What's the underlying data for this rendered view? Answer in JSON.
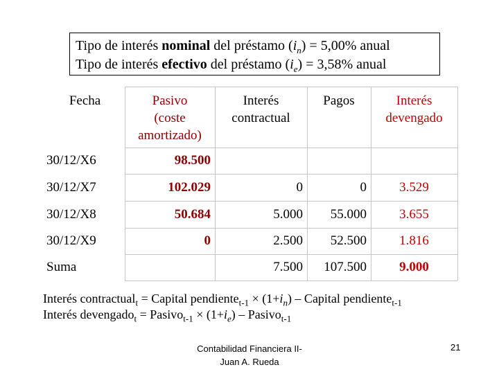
{
  "rate_box": {
    "lines": [
      [
        "Tipo de interés ",
        "nominal",
        " del préstamo (",
        "i",
        "n",
        ") = 5,00% anual"
      ],
      [
        "Tipo de interés ",
        "efectivo",
        " del préstamo (",
        "i",
        "e",
        ") = 3,58% anual"
      ]
    ]
  },
  "table": {
    "headers": [
      [
        "Fecha"
      ],
      [
        "Pasivo",
        "(coste",
        "amortizado)"
      ],
      [
        "Interés",
        "contractual"
      ],
      [
        "Pagos"
      ],
      [
        "Interés",
        "devengado"
      ]
    ],
    "rows": [
      [
        "30/12/X6",
        "98.500",
        null,
        null,
        null
      ],
      [
        "30/12/X7",
        "102.029",
        "0",
        "0",
        "3.529"
      ],
      [
        "30/12/X8",
        "50.684",
        "5.000",
        "55.000",
        "3.655"
      ],
      [
        "30/12/X9",
        "0",
        "2.500",
        "52.500",
        "1.816"
      ],
      [
        "Suma",
        null,
        "7.500",
        "107.500",
        "9.000"
      ]
    ]
  },
  "formulas": [
    [
      "Interés contractual",
      "t",
      " = Capital pendiente",
      "t-1",
      " × (1+",
      "i",
      "n",
      ") – Capital pendiente",
      "t-1"
    ],
    [
      "Interés devengado",
      "t",
      " = Pasivo",
      "t-1",
      " × (1+",
      "i",
      "e",
      ") – Pasivo",
      "t-1"
    ]
  ],
  "footer": {
    "lines": [
      "Contabilidad Financiera II-",
      "Juan A. Rueda"
    ],
    "page_number": "21"
  }
}
